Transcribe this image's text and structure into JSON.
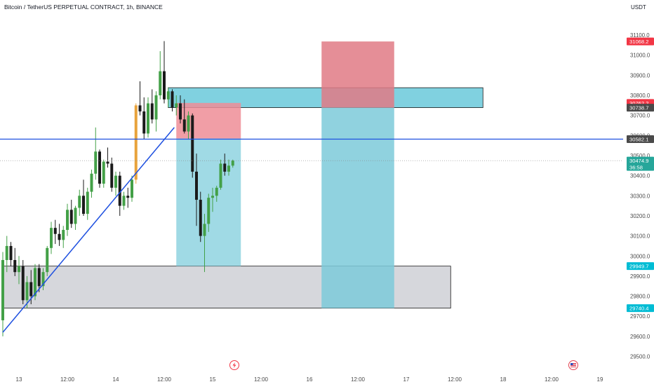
{
  "header": {
    "symbol_title": "Bitcoin / TetherUS PERPETUAL CONTRACT, 1h, BINANCE",
    "currency": "USDT"
  },
  "chart_data": {
    "type": "candlestick",
    "title": "Bitcoin / TetherUS PERPETUAL CONTRACT, 1h, BINANCE",
    "y_unit": "USDT",
    "ylim": [
      29460,
      31170
    ],
    "y_ticks": [
      29500,
      29600,
      29700,
      29800,
      29900,
      30000,
      30100,
      30200,
      30300,
      30400,
      30500,
      30600,
      30700,
      30800,
      30900,
      31000,
      31100
    ],
    "y_tick_labels": [
      "29500.0",
      "29600.0",
      "29700.0",
      "29800.0",
      "29900.0",
      "30000.0",
      "30100.0",
      "30200.0",
      "30300.0",
      "30400.0",
      "30500.0",
      "30600.0",
      "30700.0",
      "30800.0",
      "30900.0",
      "31000.0",
      "31100.0"
    ],
    "x_ticks": [
      {
        "label": "13",
        "time": "2023-07-13 00:00"
      },
      {
        "label": "12:00",
        "time": "2023-07-13 12:00"
      },
      {
        "label": "14",
        "time": "2023-07-14 00:00"
      },
      {
        "label": "12:00",
        "time": "2023-07-14 12:00"
      },
      {
        "label": "15",
        "time": "2023-07-15 00:00"
      },
      {
        "label": "12:00",
        "time": "2023-07-15 12:00"
      },
      {
        "label": "16",
        "time": "2023-07-16 00:00"
      },
      {
        "label": "12:00",
        "time": "2023-07-16 12:00"
      },
      {
        "label": "17",
        "time": "2023-07-17 00:00"
      },
      {
        "label": "12:00",
        "time": "2023-07-17 12:00"
      },
      {
        "label": "18",
        "time": "2023-07-18 00:00"
      },
      {
        "label": "12:00",
        "time": "2023-07-18 12:00"
      },
      {
        "label": "19",
        "time": "2023-07-19 00:00"
      }
    ],
    "candles_start": "2023-07-12 20:00",
    "candle_interval_hours": 1,
    "candles": [
      [
        29680,
        30020,
        29600,
        29980
      ],
      [
        29980,
        30100,
        29920,
        30050
      ],
      [
        30050,
        30070,
        29950,
        29980
      ],
      [
        29980,
        30040,
        29900,
        29920
      ],
      [
        29920,
        30000,
        29860,
        29950
      ],
      [
        29950,
        29980,
        29760,
        29780
      ],
      [
        29780,
        29900,
        29740,
        29870
      ],
      [
        29870,
        29930,
        29760,
        29800
      ],
      [
        29800,
        29960,
        29780,
        29940
      ],
      [
        29940,
        29960,
        29820,
        29850
      ],
      [
        29850,
        29940,
        29830,
        29920
      ],
      [
        29920,
        30050,
        29900,
        30040
      ],
      [
        30040,
        30170,
        30010,
        30140
      ],
      [
        30140,
        30180,
        30060,
        30110
      ],
      [
        30110,
        30160,
        30050,
        30080
      ],
      [
        30080,
        30150,
        30040,
        30130
      ],
      [
        30130,
        30260,
        30100,
        30230
      ],
      [
        30230,
        30280,
        30140,
        30160
      ],
      [
        30160,
        30250,
        30130,
        30240
      ],
      [
        30240,
        30330,
        30200,
        30300
      ],
      [
        30300,
        30380,
        30200,
        30210
      ],
      [
        30210,
        30340,
        30180,
        30320
      ],
      [
        30320,
        30430,
        30290,
        30410
      ],
      [
        30410,
        30640,
        30380,
        30520
      ],
      [
        30520,
        30530,
        30340,
        30360
      ],
      [
        30360,
        30480,
        30340,
        30470
      ],
      [
        30470,
        30540,
        30440,
        30460
      ],
      [
        30460,
        30490,
        30320,
        30340
      ],
      [
        30340,
        30420,
        30300,
        30400
      ],
      [
        30400,
        30420,
        30200,
        30250
      ],
      [
        30250,
        30320,
        30230,
        30300
      ],
      [
        30300,
        30340,
        30240,
        30290
      ],
      [
        30290,
        30400,
        30270,
        30380
      ],
      [
        30380,
        30760,
        30360,
        30750
      ],
      [
        30750,
        30870,
        30700,
        30720
      ],
      [
        30720,
        30790,
        30580,
        30610
      ],
      [
        30610,
        30790,
        30590,
        30760
      ],
      [
        30760,
        30830,
        30660,
        30680
      ],
      [
        30680,
        30820,
        30620,
        30800
      ],
      [
        30800,
        31020,
        30780,
        30920
      ],
      [
        30920,
        31070,
        30760,
        30780
      ],
      [
        30780,
        30840,
        30740,
        30820
      ],
      [
        30820,
        30830,
        30720,
        30740
      ],
      [
        30740,
        30800,
        30700,
        30760
      ],
      [
        30760,
        30800,
        30660,
        30680
      ],
      [
        30680,
        30780,
        30610,
        30620
      ],
      [
        30620,
        30720,
        30580,
        30700
      ],
      [
        30700,
        30710,
        30390,
        30420
      ],
      [
        30420,
        30510,
        30150,
        30280
      ],
      [
        30280,
        30320,
        30070,
        30100
      ],
      [
        30100,
        30210,
        29920,
        30160
      ],
      [
        30160,
        30310,
        30120,
        30290
      ],
      [
        30290,
        30340,
        30220,
        30300
      ],
      [
        30300,
        30350,
        30270,
        30340
      ],
      [
        30340,
        30480,
        30330,
        30460
      ],
      [
        30460,
        30510,
        30400,
        30420
      ],
      [
        30420,
        30480,
        30400,
        30450
      ],
      [
        30450,
        30480,
        30440,
        30475
      ]
    ],
    "bullish_color": "#43a047",
    "bearish_color": "#1a1a1a",
    "highlight_candle_color": "#e8a33c",
    "price_markers": [
      {
        "label": "31068.2",
        "value": 31068.2,
        "color": "#f23645"
      },
      {
        "label": "30762.2",
        "value": 30762.2,
        "color": "#f23645"
      },
      {
        "label": "30738.7",
        "value": 30738.7,
        "color": "#4a4a4a"
      },
      {
        "label": "30582.1",
        "value": 30582.1,
        "color": "#4a4a4a"
      },
      {
        "label": "30474.9",
        "value": 30474.9,
        "color": "#26a69a",
        "sublabel": "36:58"
      },
      {
        "label": "29949.7",
        "value": 29949.7,
        "color": "#00bcd4"
      },
      {
        "label": "29740.4",
        "value": 29740.4,
        "color": "#00bcd4"
      }
    ],
    "horizontal_line": {
      "value": 30582.1,
      "color": "#1e50e0"
    },
    "current_price": 30474.9,
    "trend_line": {
      "from": [
        "2023-07-12 20:00",
        29620
      ],
      "to": [
        "2023-07-14 14:30",
        30640
      ],
      "color": "#1e50e0"
    },
    "zones": [
      {
        "kind": "supply-zone",
        "from": "2023-07-14 13:00",
        "to": "2023-07-17 19:00",
        "low": 30738.7,
        "high": 30838,
        "color": "#56c2d6"
      },
      {
        "kind": "demand-zone",
        "from": "2023-07-12 20:00",
        "to": "2023-07-17 11:00",
        "low": 29740.4,
        "high": 29949.7,
        "color": "#c8c9d0"
      },
      {
        "kind": "position-stop",
        "from": "2023-07-14 15:00",
        "to": "2023-07-15 07:00",
        "low": 30585,
        "high": 30762.2,
        "color": "#ef8d97"
      },
      {
        "kind": "position-target",
        "from": "2023-07-14 15:00",
        "to": "2023-07-15 07:00",
        "low": 29949.7,
        "high": 30585,
        "color": "#8fd3e0"
      },
      {
        "kind": "position-stop",
        "from": "2023-07-16 03:00",
        "to": "2023-07-16 21:00",
        "low": 30738.7,
        "high": 31068.2,
        "color": "#e07a85"
      },
      {
        "kind": "position-target",
        "from": "2023-07-16 03:00",
        "to": "2023-07-16 21:00",
        "low": 29740.4,
        "high": 30738.7,
        "color": "#7ccad9"
      }
    ],
    "grid": false
  },
  "icons": {
    "event_bolt": "lightning-icon",
    "event_flag": "us-flag-icon"
  }
}
